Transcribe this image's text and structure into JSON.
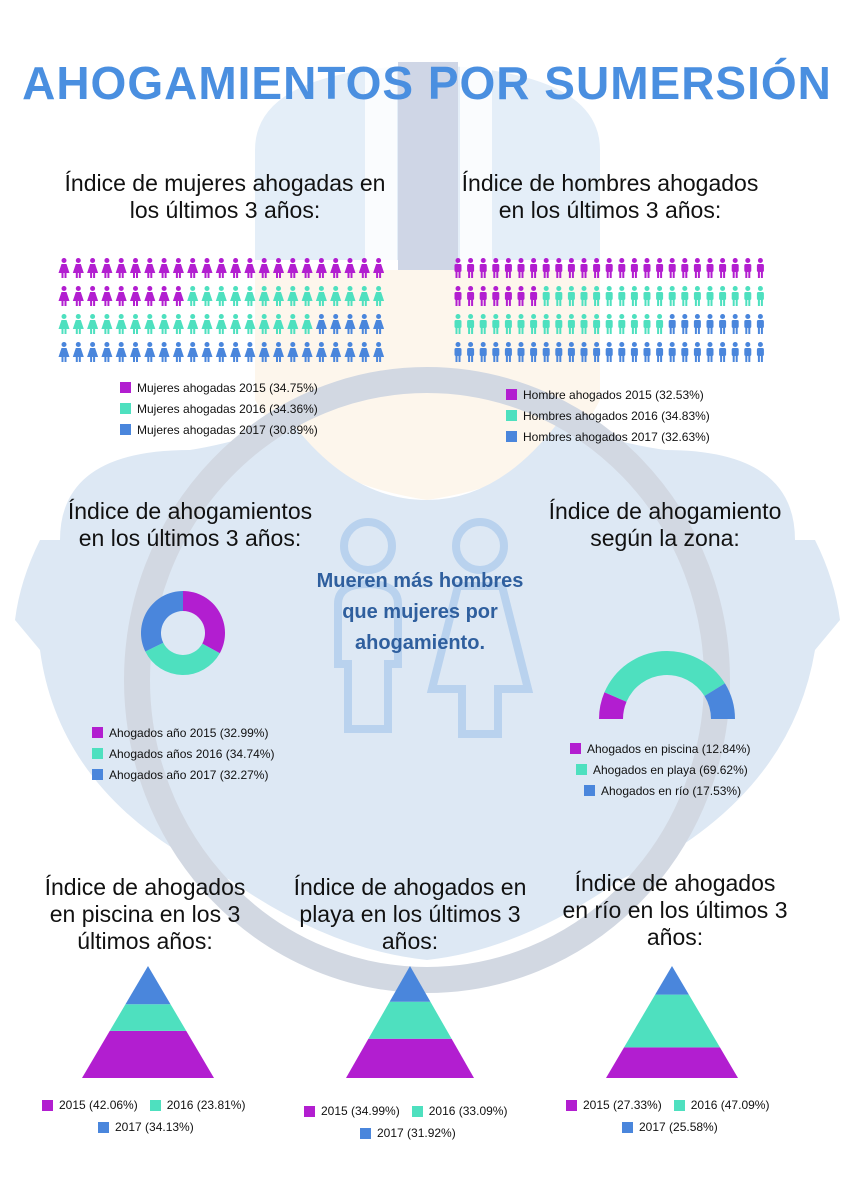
{
  "colors": {
    "y2015": "#b21ed0",
    "y2016": "#4ee0bf",
    "y2017": "#4a86dc",
    "title": "#4a8fe0",
    "callout": "#2f5f9e"
  },
  "title": "AHOGAMIENTOS POR SUMERSIÓN",
  "women": {
    "title_l1": "Índice de mujeres ahogadas en",
    "title_l2": "los últimos 3 años:",
    "legend": [
      "Mujeres ahogadas 2015 (34.75%)",
      "Mujeres ahogadas 2016 (34.36%)",
      "Mujeres ahogadas 2017 (30.89%)"
    ]
  },
  "men": {
    "title_l1": "Índice de hombres ahogados",
    "title_l2": "en los últimos 3 años:",
    "legend": [
      "Hombre ahogados 2015 (32.53%)",
      "Hombres ahogados 2016 (34.83%)",
      "Hombres ahogados 2017 (32.63%)"
    ]
  },
  "overall": {
    "title_l1": "Índice de ahogamientos",
    "title_l2": "en los últimos 3 años:",
    "legend": [
      "Ahogados año 2015 (32.99%)",
      "Ahogados años 2016 (34.74%)",
      "Ahogados año 2017 (32.27%)"
    ]
  },
  "callout": {
    "l1": "Mueren más hombres",
    "l2": "que mujeres por",
    "l3": "ahogamiento."
  },
  "zone": {
    "title_l1": "Índice de ahogamiento",
    "title_l2": "según la zona:",
    "legend": [
      "Ahogados en piscina (12.84%)",
      "Ahogados en playa (69.62%)",
      "Ahogados en río (17.53%)"
    ]
  },
  "pool": {
    "title_l1": "Índice de ahogados",
    "title_l2": "en piscina en los 3",
    "title_l3": "últimos años:",
    "legend": [
      "2015 (42.06%)",
      "2016 (23.81%)",
      "2017 (34.13%)"
    ]
  },
  "beach": {
    "title_l1": "Índice de ahogados en",
    "title_l2": "playa en los últimos 3",
    "title_l3": "años:",
    "legend": [
      "2015 (34.99%)",
      "2016 (33.09%)",
      "2017 (31.92%)"
    ]
  },
  "river": {
    "title_l1": "Índice de ahogados",
    "title_l2": "en río en los últimos 3",
    "title_l3": "años:",
    "legend": [
      "2015 (27.33%)",
      "2016 (47.09%)",
      "2017 (25.58%)"
    ]
  },
  "chart_data": [
    {
      "type": "pictogram",
      "title": "Índice de mujeres ahogadas en los últimos 3 años:",
      "categories": [
        "Mujeres ahogadas 2015",
        "Mujeres ahogadas 2016",
        "Mujeres ahogadas 2017"
      ],
      "values": [
        34.75,
        34.36,
        30.89
      ],
      "icon": "woman-icon",
      "icons_total": 92
    },
    {
      "type": "pictogram",
      "title": "Índice de hombres ahogados en los últimos 3 años:",
      "categories": [
        "Hombre ahogados 2015",
        "Hombres ahogados 2016",
        "Hombres ahogados 2017"
      ],
      "values": [
        32.53,
        34.83,
        32.63
      ],
      "icon": "man-icon",
      "icons_total": 100
    },
    {
      "type": "pie",
      "variant": "donut",
      "title": "Índice de ahogamientos en los últimos 3 años:",
      "categories": [
        "Ahogados año 2015",
        "Ahogados años 2016",
        "Ahogados año 2017"
      ],
      "values": [
        32.99,
        34.74,
        32.27
      ]
    },
    {
      "type": "pie",
      "variant": "half-donut",
      "title": "Índice de ahogamiento según la zona:",
      "categories": [
        "Ahogados en piscina",
        "Ahogados en playa",
        "Ahogados en río"
      ],
      "values": [
        12.84,
        69.62,
        17.53
      ]
    },
    {
      "type": "pyramid",
      "title": "Índice de ahogados en piscina en los 3 últimos años:",
      "categories": [
        "2015",
        "2016",
        "2017"
      ],
      "values": [
        42.06,
        23.81,
        34.13
      ]
    },
    {
      "type": "pyramid",
      "title": "Índice de ahogados en playa en los últimos 3 años:",
      "categories": [
        "2015",
        "2016",
        "2017"
      ],
      "values": [
        34.99,
        33.09,
        31.92
      ]
    },
    {
      "type": "pyramid",
      "title": "Índice de ahogados en río en los últimos 3 años:",
      "categories": [
        "2015",
        "2016",
        "2017"
      ],
      "values": [
        27.33,
        47.09,
        25.58
      ]
    }
  ]
}
